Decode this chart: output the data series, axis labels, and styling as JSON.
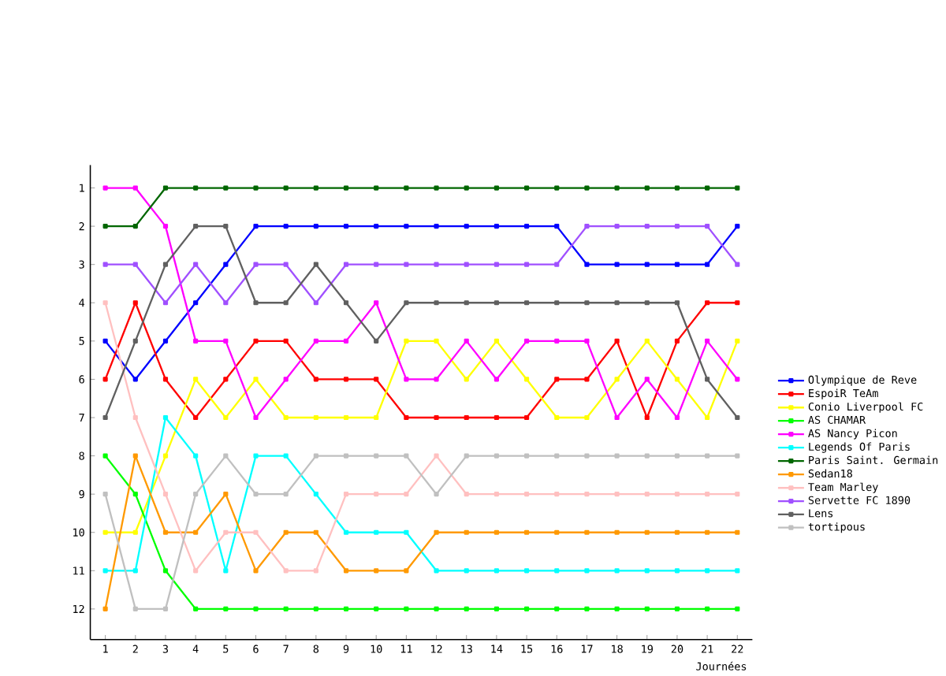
{
  "chart_data": {
    "type": "line",
    "xlabel": "Journées",
    "x": [
      1,
      2,
      3,
      4,
      5,
      6,
      7,
      8,
      9,
      10,
      11,
      12,
      13,
      14,
      15,
      16,
      17,
      18,
      19,
      20,
      21,
      22
    ],
    "xlim": [
      0.5,
      22.5
    ],
    "xticks": [
      1,
      2,
      3,
      4,
      5,
      6,
      7,
      8,
      9,
      10,
      11,
      12,
      13,
      14,
      15,
      16,
      17,
      18,
      19,
      20,
      21,
      22
    ],
    "ylim": [
      12.8,
      0.4
    ],
    "yticks": [
      1,
      2,
      3,
      4,
      5,
      6,
      7,
      8,
      9,
      10,
      11,
      12
    ],
    "grid": false,
    "legend": "right",
    "marker": "square",
    "line_style": "solid",
    "series": [
      {
        "name": "Olympique de Reve",
        "color": "#0000ff",
        "values": [
          5,
          6,
          5,
          4,
          3,
          2,
          2,
          2,
          2,
          2,
          2,
          2,
          2,
          2,
          2,
          2,
          3,
          3,
          3,
          3,
          3,
          2
        ]
      },
      {
        "name": "EspoiR TeAm",
        "color": "#ff0000",
        "values": [
          6,
          4,
          6,
          7,
          6,
          5,
          5,
          6,
          6,
          6,
          7,
          7,
          7,
          7,
          7,
          6,
          6,
          5,
          7,
          5,
          4,
          4
        ]
      },
      {
        "name": "Conio Liverpool FC",
        "color": "#ffff00",
        "values": [
          10,
          10,
          8,
          6,
          7,
          6,
          7,
          7,
          7,
          7,
          5,
          5,
          6,
          5,
          6,
          7,
          7,
          6,
          5,
          6,
          7,
          5
        ]
      },
      {
        "name": "AS CHAMAR",
        "color": "#00ff00",
        "values": [
          8,
          9,
          11,
          12,
          12,
          12,
          12,
          12,
          12,
          12,
          12,
          12,
          12,
          12,
          12,
          12,
          12,
          12,
          12,
          12,
          12,
          12
        ]
      },
      {
        "name": "AS Nancy Picon",
        "color": "#ff00ff",
        "values": [
          1,
          1,
          2,
          5,
          5,
          7,
          6,
          5,
          5,
          4,
          6,
          6,
          5,
          6,
          5,
          5,
          5,
          7,
          6,
          7,
          5,
          6
        ]
      },
      {
        "name": "Legends Of Paris",
        "color": "#00ffff",
        "values": [
          11,
          11,
          7,
          8,
          11,
          8,
          8,
          9,
          10,
          10,
          10,
          11,
          11,
          11,
          11,
          11,
          11,
          11,
          11,
          11,
          11,
          11
        ]
      },
      {
        "name": "Paris Saint. Germain",
        "color": "#006600",
        "values": [
          2,
          2,
          1,
          1,
          1,
          1,
          1,
          1,
          1,
          1,
          1,
          1,
          1,
          1,
          1,
          1,
          1,
          1,
          1,
          1,
          1,
          1
        ]
      },
      {
        "name": "Sedan18",
        "color": "#ff9900",
        "values": [
          12,
          8,
          10,
          10,
          9,
          11,
          10,
          10,
          11,
          11,
          11,
          10,
          10,
          10,
          10,
          10,
          10,
          10,
          10,
          10,
          10,
          10
        ]
      },
      {
        "name": "Team Marley",
        "color": "#ffc0c0",
        "values": [
          4,
          7,
          9,
          11,
          10,
          10,
          11,
          11,
          9,
          9,
          9,
          8,
          9,
          9,
          9,
          9,
          9,
          9,
          9,
          9,
          9,
          9
        ]
      },
      {
        "name": "Servette FC 1890",
        "color": "#a050ff",
        "values": [
          3,
          3,
          4,
          3,
          4,
          3,
          3,
          4,
          3,
          3,
          3,
          3,
          3,
          3,
          3,
          3,
          2,
          2,
          2,
          2,
          2,
          3
        ]
      },
      {
        "name": "Lens",
        "color": "#606060",
        "values": [
          7,
          5,
          3,
          2,
          2,
          4,
          4,
          3,
          4,
          5,
          4,
          4,
          4,
          4,
          4,
          4,
          4,
          4,
          4,
          4,
          6,
          7
        ]
      },
      {
        "name": "tortipous",
        "color": "#c0c0c0",
        "values": [
          9,
          12,
          12,
          9,
          8,
          9,
          9,
          8,
          8,
          8,
          8,
          9,
          8,
          8,
          8,
          8,
          8,
          8,
          8,
          8,
          8,
          8
        ]
      }
    ]
  }
}
